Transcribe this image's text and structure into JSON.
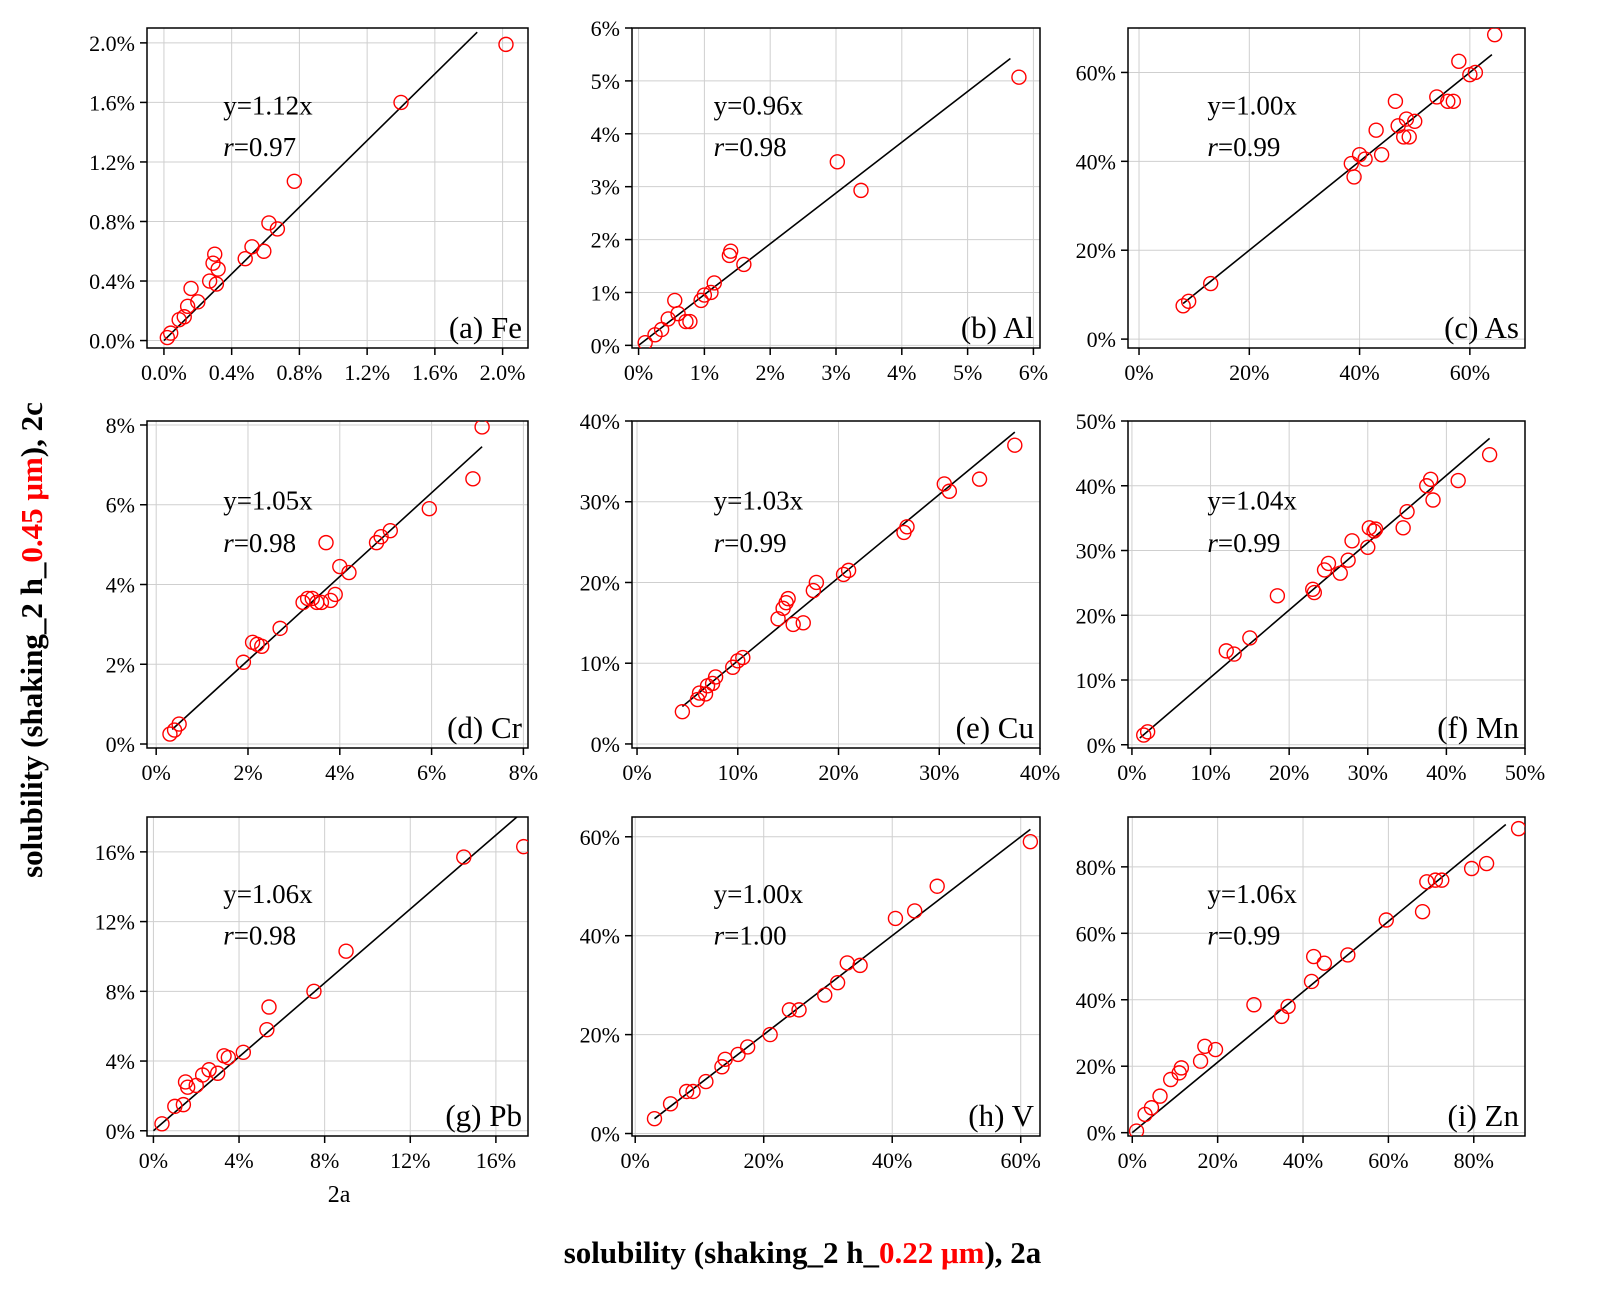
{
  "figure": {
    "y_axis_title": {
      "prefix": "solubility (shaking_2 h_",
      "highlight": "0.45 μm",
      "suffix": "), 2c"
    },
    "x_axis_title": {
      "prefix": "solubility (shaking_2 h_",
      "highlight": "0.22 μm",
      "suffix": "), 2a"
    },
    "highlight_color": "#ff0000",
    "marker_color": "#ff0000",
    "line_color": "#000000",
    "grid": true
  },
  "chart_data": [
    {
      "type": "scatter",
      "panel": "(a) Fe",
      "equation": "y=1.12x",
      "r_label": "r",
      "r_value": "=0.97",
      "xlim": [
        -0.1,
        2.15
      ],
      "ylim": [
        -0.05,
        2.1
      ],
      "xticks": [
        0.0,
        0.4,
        0.8,
        1.2,
        1.6,
        2.0
      ],
      "xtick_labels": [
        "0.0%",
        "0.4%",
        "0.8%",
        "1.2%",
        "1.6%",
        "2.0%"
      ],
      "yticks": [
        0.0,
        0.4,
        0.8,
        1.2,
        1.6,
        2.0
      ],
      "ytick_labels": [
        "0.0%",
        "0.4%",
        "0.8%",
        "1.2%",
        "1.6%",
        "2.0%"
      ],
      "slope": 1.12,
      "fit_range": [
        0.0,
        1.85
      ],
      "x": [
        0.02,
        0.04,
        0.09,
        0.12,
        0.14,
        0.16,
        0.2,
        0.27,
        0.29,
        0.3,
        0.31,
        0.32,
        0.48,
        0.52,
        0.59,
        0.62,
        0.67,
        0.77,
        1.4,
        2.02
      ],
      "y": [
        0.02,
        0.05,
        0.14,
        0.16,
        0.23,
        0.35,
        0.26,
        0.4,
        0.52,
        0.58,
        0.38,
        0.48,
        0.55,
        0.63,
        0.6,
        0.79,
        0.75,
        1.07,
        1.6,
        1.99
      ]
    },
    {
      "type": "scatter",
      "panel": "(b) Al",
      "equation": "y=0.96x",
      "r_label": "r",
      "r_value": "=0.98",
      "xlim": [
        -0.1,
        6.1
      ],
      "ylim": [
        -0.05,
        6.0
      ],
      "xticks": [
        0,
        1,
        2,
        3,
        4,
        5,
        6
      ],
      "xtick_labels": [
        "0%",
        "1%",
        "2%",
        "3%",
        "4%",
        "5%",
        "6%"
      ],
      "yticks": [
        0,
        1,
        2,
        3,
        4,
        5,
        6
      ],
      "ytick_labels": [
        "0%",
        "1%",
        "2%",
        "3%",
        "4%",
        "5%",
        "6%"
      ],
      "slope": 0.96,
      "fit_range": [
        0.0,
        5.65
      ],
      "x": [
        0.1,
        0.25,
        0.35,
        0.45,
        0.55,
        0.6,
        0.72,
        0.78,
        0.95,
        1.0,
        1.1,
        1.15,
        1.4,
        1.38,
        1.6,
        3.02,
        3.38,
        5.78
      ],
      "y": [
        0.05,
        0.2,
        0.3,
        0.5,
        0.85,
        0.6,
        0.45,
        0.45,
        0.85,
        0.95,
        1.0,
        1.18,
        1.78,
        1.7,
        1.53,
        3.47,
        2.93,
        5.07
      ]
    },
    {
      "type": "scatter",
      "panel": "(c) As",
      "equation": "y=1.00x",
      "r_label": "r",
      "r_value": "=0.99",
      "xlim": [
        -2,
        70
      ],
      "ylim": [
        -2,
        70
      ],
      "xticks": [
        0,
        20,
        40,
        60
      ],
      "xtick_labels": [
        "0%",
        "20%",
        "40%",
        "60%"
      ],
      "yticks": [
        0,
        20,
        40,
        60
      ],
      "ytick_labels": [
        "0%",
        "20%",
        "40%",
        "60%"
      ],
      "slope": 1.0,
      "fit_range": [
        8,
        64
      ],
      "x": [
        8,
        9,
        13,
        38.5,
        39,
        40,
        41,
        43,
        44,
        46.5,
        47,
        48,
        48.5,
        49,
        50,
        54,
        56,
        57,
        58,
        60,
        61,
        64.5
      ],
      "y": [
        7.5,
        8.5,
        12.5,
        39.5,
        36.5,
        41.5,
        40.5,
        47,
        41.5,
        53.5,
        48,
        45.5,
        49.5,
        45.5,
        49,
        54.5,
        53.5,
        53.5,
        62.5,
        59.5,
        60,
        68.5
      ]
    },
    {
      "type": "scatter",
      "panel": "(d) Cr",
      "equation": "y=1.05x",
      "r_label": "r",
      "r_value": "=0.98",
      "xlim": [
        -0.2,
        8.1
      ],
      "ylim": [
        -0.1,
        8.1
      ],
      "xticks": [
        0,
        2,
        4,
        6,
        8
      ],
      "xtick_labels": [
        "0%",
        "2%",
        "4%",
        "6%",
        "8%"
      ],
      "yticks": [
        0,
        2,
        4,
        6,
        8
      ],
      "ytick_labels": [
        "0%",
        "2%",
        "4%",
        "6%",
        "8%"
      ],
      "slope": 1.05,
      "fit_range": [
        0.35,
        7.1
      ],
      "x": [
        0.3,
        0.4,
        0.5,
        1.9,
        2.1,
        2.2,
        2.3,
        2.7,
        3.2,
        3.3,
        3.4,
        3.5,
        3.6,
        3.7,
        3.8,
        3.9,
        4.0,
        4.2,
        4.8,
        4.9,
        5.1,
        5.95,
        6.9,
        7.1
      ],
      "y": [
        0.25,
        0.35,
        0.5,
        2.05,
        2.55,
        2.5,
        2.45,
        2.9,
        3.55,
        3.65,
        3.65,
        3.55,
        3.55,
        5.05,
        3.6,
        3.75,
        4.45,
        4.3,
        5.05,
        5.2,
        5.35,
        5.9,
        6.65,
        7.95
      ]
    },
    {
      "type": "scatter",
      "panel": "(e) Cu",
      "equation": "y=1.03x",
      "r_label": "r",
      "r_value": "=0.99",
      "xlim": [
        -0.5,
        40
      ],
      "ylim": [
        -0.5,
        40
      ],
      "xticks": [
        0,
        10,
        20,
        30,
        40
      ],
      "xtick_labels": [
        "0%",
        "10%",
        "20%",
        "30%",
        "40%"
      ],
      "yticks": [
        0,
        10,
        20,
        30,
        40
      ],
      "ytick_labels": [
        "0%",
        "10%",
        "20%",
        "30%",
        "40%"
      ],
      "slope": 1.03,
      "fit_range": [
        4.5,
        37.5
      ],
      "x": [
        4.5,
        6.0,
        6.2,
        6.8,
        7.0,
        7.5,
        7.8,
        9.5,
        10.0,
        10.5,
        14.0,
        14.5,
        14.8,
        15.0,
        15.5,
        16.5,
        17.5,
        17.8,
        20.5,
        21.0,
        26.5,
        26.8,
        30.5,
        31.0,
        34.0,
        37.5
      ],
      "y": [
        4.0,
        5.5,
        6.3,
        6.2,
        7.2,
        7.5,
        8.3,
        9.5,
        10.3,
        10.7,
        15.5,
        16.8,
        17.5,
        18.0,
        14.8,
        15.0,
        19.0,
        20.0,
        21.0,
        21.5,
        26.2,
        26.9,
        32.2,
        31.3,
        32.8,
        37.0
      ]
    },
    {
      "type": "scatter",
      "panel": "(f) Mn",
      "equation": "y=1.04x",
      "r_label": "r",
      "r_value": "=0.99",
      "xlim": [
        -0.5,
        50
      ],
      "ylim": [
        -0.5,
        50
      ],
      "xticks": [
        0,
        10,
        20,
        30,
        40,
        50
      ],
      "xtick_labels": [
        "0%",
        "10%",
        "20%",
        "30%",
        "40%",
        "50%"
      ],
      "yticks": [
        0,
        10,
        20,
        30,
        40,
        50
      ],
      "ytick_labels": [
        "0%",
        "10%",
        "20%",
        "30%",
        "40%",
        "50%"
      ],
      "slope": 1.04,
      "fit_range": [
        1.0,
        45.5
      ],
      "x": [
        1.5,
        2.0,
        12.0,
        13.0,
        15.0,
        18.5,
        23.0,
        23.2,
        24.5,
        25.0,
        26.5,
        27.5,
        28.0,
        30.0,
        30.2,
        30.8,
        31.0,
        34.5,
        35.0,
        37.5,
        38.0,
        38.3,
        41.5,
        45.5
      ],
      "y": [
        1.5,
        2.0,
        14.5,
        14.0,
        16.5,
        23.0,
        24.0,
        23.5,
        27.0,
        28.0,
        26.5,
        28.5,
        31.5,
        30.5,
        33.5,
        33.0,
        33.3,
        33.5,
        36.0,
        40.0,
        41.0,
        37.8,
        40.8,
        44.8
      ]
    },
    {
      "type": "scatter",
      "panel": "(g) Pb",
      "equation": "y=1.06x",
      "r_label": "r",
      "r_value": "=0.98",
      "xlim": [
        -0.3,
        17.5
      ],
      "ylim": [
        -0.3,
        18.0
      ],
      "xticks": [
        0,
        4,
        8,
        12,
        16
      ],
      "xtick_labels": [
        "0%",
        "4%",
        "8%",
        "12%",
        "16%"
      ],
      "yticks": [
        0,
        4,
        8,
        12,
        16
      ],
      "ytick_labels": [
        "0%",
        "4%",
        "8%",
        "12%",
        "16%"
      ],
      "slope": 1.06,
      "fit_range": [
        0.0,
        17.0
      ],
      "x": [
        0.4,
        1.0,
        1.4,
        1.5,
        1.6,
        2.0,
        2.3,
        2.6,
        3.0,
        3.3,
        3.5,
        4.2,
        5.3,
        5.4,
        7.5,
        9.0,
        14.5,
        17.3
      ],
      "y": [
        0.4,
        1.4,
        1.5,
        2.8,
        2.5,
        2.6,
        3.2,
        3.5,
        3.3,
        4.3,
        4.2,
        4.5,
        5.8,
        7.1,
        8.0,
        10.3,
        15.7,
        16.3
      ],
      "extra_label": "2a"
    },
    {
      "type": "scatter",
      "panel": "(h) V",
      "equation": "y=1.00x",
      "r_label": "r",
      "r_value": "=1.00",
      "xlim": [
        -0.5,
        63
      ],
      "ylim": [
        -0.5,
        64
      ],
      "xticks": [
        0,
        20,
        40,
        60
      ],
      "xtick_labels": [
        "0%",
        "20%",
        "40%",
        "60%"
      ],
      "yticks": [
        0,
        20,
        40,
        60
      ],
      "ytick_labels": [
        "0%",
        "20%",
        "40%",
        "60%"
      ],
      "slope": 1.0,
      "fit_range": [
        3.0,
        61.5
      ],
      "x": [
        3.0,
        5.5,
        8.0,
        9.0,
        11.0,
        13.5,
        14.0,
        16.0,
        17.5,
        21.0,
        24.0,
        25.5,
        29.5,
        31.5,
        33.0,
        35.0,
        40.5,
        43.5,
        47.0,
        61.5
      ],
      "y": [
        3.0,
        6.0,
        8.5,
        8.5,
        10.5,
        13.5,
        15.0,
        16.0,
        17.5,
        20.0,
        25.0,
        25.0,
        28.0,
        30.5,
        34.5,
        34.0,
        43.5,
        45.0,
        50.0,
        59.0
      ]
    },
    {
      "type": "scatter",
      "panel": "(i) Zn",
      "equation": "y=1.06x",
      "r_label": "r",
      "r_value": "=0.99",
      "xlim": [
        -1,
        92
      ],
      "ylim": [
        -1,
        95
      ],
      "xticks": [
        0,
        20,
        40,
        60,
        80
      ],
      "xtick_labels": [
        "0%",
        "20%",
        "40%",
        "60%",
        "80%"
      ],
      "yticks": [
        0,
        20,
        40,
        60,
        80
      ],
      "ytick_labels": [
        "0%",
        "20%",
        "40%",
        "60%",
        "80%"
      ],
      "slope": 1.06,
      "fit_range": [
        0.0,
        87.5
      ],
      "x": [
        1.0,
        3.0,
        4.5,
        6.5,
        9.0,
        11.0,
        11.5,
        16.0,
        17.0,
        19.5,
        28.5,
        35.0,
        36.5,
        42.0,
        42.5,
        45.0,
        50.5,
        59.5,
        68.0,
        69.0,
        71.0,
        72.5,
        79.5,
        83.0,
        90.5
      ],
      "y": [
        0.5,
        5.5,
        7.5,
        11.0,
        16.0,
        18.0,
        19.5,
        21.5,
        26.0,
        25.0,
        38.5,
        35.0,
        38.0,
        45.5,
        53.0,
        51.0,
        53.5,
        64.0,
        66.5,
        75.5,
        76.0,
        76.0,
        79.5,
        81.0,
        91.5
      ]
    }
  ]
}
